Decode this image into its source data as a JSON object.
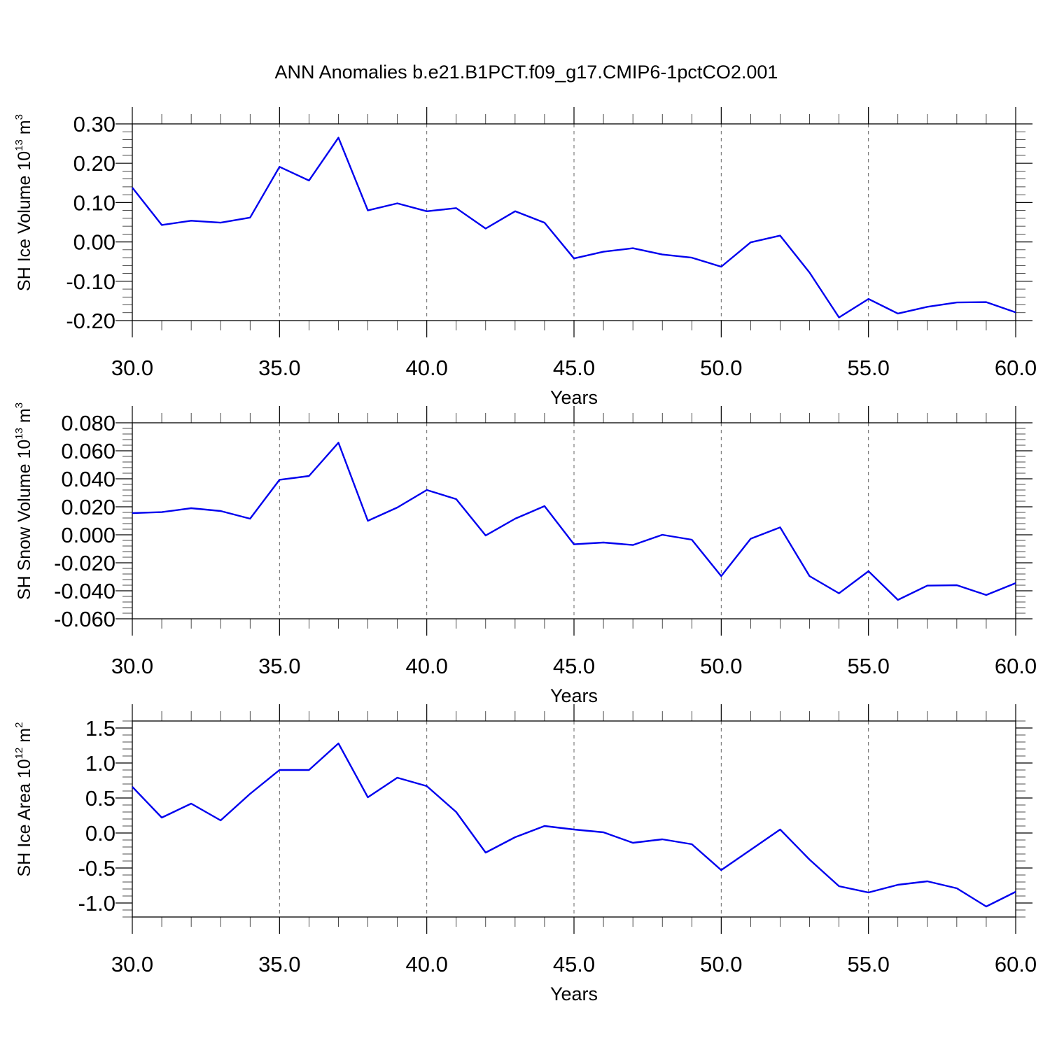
{
  "figure": {
    "title": "ANN Anomalies b.e21.B1PCT.f09_g17.CMIP6-1pctCO2.001"
  },
  "chart_data": [
    {
      "type": "line",
      "ylabel": {
        "text": "SH Ice Volume 10",
        "exp": "13",
        "unit": " m",
        "unit_exp": "3"
      },
      "xlabel": "Years",
      "xlim": [
        30,
        60
      ],
      "ylim": [
        -0.2,
        0.3
      ],
      "xticks": [
        30,
        35,
        40,
        45,
        50,
        55,
        60
      ],
      "xtick_labels": [
        "30.0",
        "35.0",
        "40.0",
        "45.0",
        "50.0",
        "55.0",
        "60.0"
      ],
      "yticks": [
        -0.2,
        -0.1,
        0.0,
        0.1,
        0.2,
        0.3
      ],
      "ytick_labels": [
        "-0.20",
        "-0.10",
        "0.00",
        "0.10",
        "0.20",
        "0.30"
      ],
      "grid": "vertical dashed at major x ticks",
      "color": "#0000ee",
      "x": [
        30,
        31,
        32,
        33,
        34,
        35,
        36,
        37,
        38,
        39,
        40,
        41,
        42,
        43,
        44,
        45,
        46,
        47,
        48,
        49,
        50,
        51,
        52,
        53,
        54,
        55,
        56,
        57,
        58,
        59,
        60
      ],
      "values": [
        0.138,
        0.043,
        0.054,
        0.049,
        0.062,
        0.191,
        0.156,
        0.265,
        0.08,
        0.098,
        0.078,
        0.086,
        0.034,
        0.078,
        0.049,
        -0.042,
        -0.025,
        -0.016,
        -0.032,
        -0.04,
        -0.063,
        -0.001,
        0.016,
        -0.078,
        -0.192,
        -0.145,
        -0.182,
        -0.165,
        -0.154,
        -0.153,
        -0.179
      ]
    },
    {
      "type": "line",
      "ylabel": {
        "text": "SH Snow Volume 10",
        "exp": "13",
        "unit": " m",
        "unit_exp": "3"
      },
      "xlabel": "Years",
      "xlim": [
        30,
        60
      ],
      "ylim": [
        -0.06,
        0.08
      ],
      "xticks": [
        30,
        35,
        40,
        45,
        50,
        55,
        60
      ],
      "xtick_labels": [
        "30.0",
        "35.0",
        "40.0",
        "45.0",
        "50.0",
        "55.0",
        "60.0"
      ],
      "yticks": [
        -0.06,
        -0.04,
        -0.02,
        0.0,
        0.02,
        0.04,
        0.06,
        0.08
      ],
      "ytick_labels": [
        "-0.060",
        "-0.040",
        "-0.020",
        "0.000",
        "0.020",
        "0.040",
        "0.060",
        "0.080"
      ],
      "grid": "vertical dashed at major x ticks",
      "color": "#0000ee",
      "x": [
        30,
        31,
        32,
        33,
        34,
        35,
        36,
        37,
        38,
        39,
        40,
        41,
        42,
        43,
        44,
        45,
        46,
        47,
        48,
        49,
        50,
        51,
        52,
        53,
        54,
        55,
        56,
        57,
        58,
        59,
        60
      ],
      "values": [
        0.0155,
        0.0162,
        0.019,
        0.017,
        0.0115,
        0.0393,
        0.042,
        0.0658,
        0.01,
        0.0195,
        0.032,
        0.0255,
        -0.0005,
        0.0115,
        0.0205,
        -0.0068,
        -0.0055,
        -0.0073,
        0.0,
        -0.0035,
        -0.0295,
        -0.0028,
        0.0053,
        -0.0295,
        -0.0418,
        -0.026,
        -0.0465,
        -0.0363,
        -0.036,
        -0.043,
        -0.0345
      ]
    },
    {
      "type": "line",
      "ylabel": {
        "text": "SH Ice Area 10",
        "exp": "12",
        "unit": " m",
        "unit_exp": "2"
      },
      "xlabel": "Years",
      "xlim": [
        30,
        60
      ],
      "ylim": [
        -1.2,
        1.6
      ],
      "xticks": [
        30,
        35,
        40,
        45,
        50,
        55,
        60
      ],
      "xtick_labels": [
        "30.0",
        "35.0",
        "40.0",
        "45.0",
        "50.0",
        "55.0",
        "60.0"
      ],
      "yticks": [
        -1.0,
        -0.5,
        0.0,
        0.5,
        1.0,
        1.5
      ],
      "ytick_labels": [
        "-1.0",
        "-0.5",
        "0.0",
        "0.5",
        "1.0",
        "1.5"
      ],
      "grid": "vertical dashed at major x ticks",
      "color": "#0000ee",
      "x": [
        30,
        31,
        32,
        33,
        34,
        35,
        36,
        37,
        38,
        39,
        40,
        41,
        42,
        43,
        44,
        45,
        46,
        47,
        48,
        49,
        50,
        51,
        52,
        53,
        54,
        55,
        56,
        57,
        58,
        59,
        60
      ],
      "values": [
        0.66,
        0.22,
        0.42,
        0.18,
        0.56,
        0.9,
        0.9,
        1.28,
        0.51,
        0.79,
        0.67,
        0.3,
        -0.28,
        -0.06,
        0.1,
        0.05,
        0.01,
        -0.14,
        -0.09,
        -0.16,
        -0.53,
        -0.24,
        0.05,
        -0.38,
        -0.76,
        -0.85,
        -0.74,
        -0.69,
        -0.79,
        -1.05,
        -0.84
      ]
    }
  ]
}
